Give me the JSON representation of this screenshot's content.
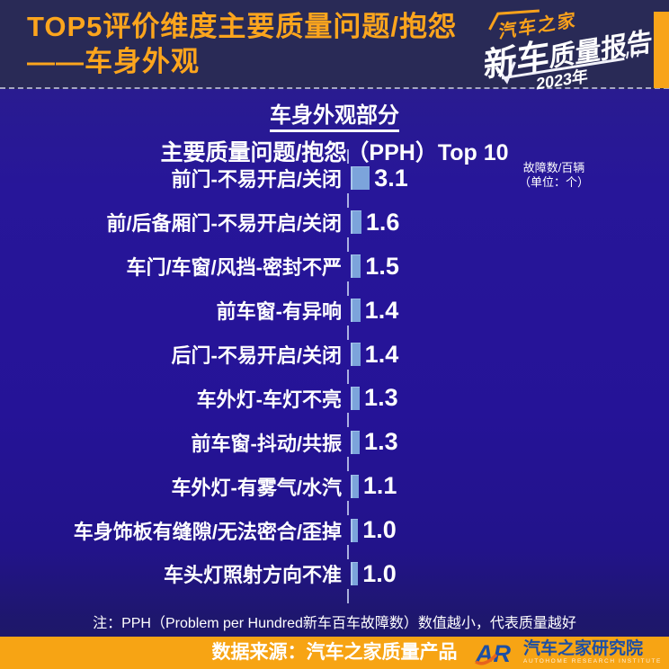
{
  "header": {
    "title_line1": "TOP5评价维度主要质量问题/抱怨",
    "title_line2": "——车身外观",
    "brand": {
      "name": "汽车之家",
      "report_big": "新车",
      "report_small": "质量报告",
      "year": "2023年"
    }
  },
  "chart": {
    "section_title": "车身外观部分",
    "subtitle": "主要质量问题/抱怨（PPH）Top 10",
    "unit_line1": "故障数/百辆",
    "unit_line2": "（单位：个）",
    "footnote": "注：PPH（Problem per Hundred新车百车故障数）数值越小，代表质量越好"
  },
  "chart_data": {
    "type": "bar",
    "orientation": "horizontal",
    "title": "车身外观部分 主要质量问题/抱怨（PPH）Top 10",
    "xlabel": "故障数/百辆（单位：个）",
    "categories": [
      "前门-不易开启/关闭",
      "前/后备厢门-不易开启/关闭",
      "车门/车窗/风挡-密封不严",
      "前车窗-有异响",
      "后门-不易开启/关闭",
      "车外灯-车灯不亮",
      "前车窗-抖动/共振",
      "车外灯-有雾气/水汽",
      "车身饰板有缝隙/无法密合/歪掉",
      "车头灯照射方向不准"
    ],
    "values": [
      3.1,
      1.6,
      1.5,
      1.4,
      1.4,
      1.3,
      1.3,
      1.1,
      1.0,
      1.0
    ],
    "bar_color": "#7CA4DB",
    "value_decimals": 1,
    "legend": "none",
    "grid": "off"
  },
  "footer": {
    "source": "数据来源：汽车之家质量产品",
    "ar_logo": {
      "letters": "AR",
      "institute_cn": "汽车之家研究院",
      "institute_en": "AUTOHOME RESEARCH INSTITUTE"
    }
  },
  "colors": {
    "accent_orange": "#F8A41A",
    "header_bg": "#292A56",
    "body_bg": "#251397",
    "bar_fill": "#7CA4DB",
    "logo_blue": "#1D4FA4",
    "swoosh_orange": "#E8641C",
    "text_white": "#FFFFFF"
  }
}
